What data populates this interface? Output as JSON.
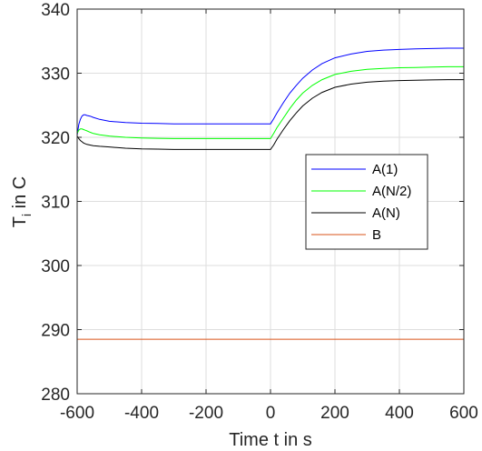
{
  "chart_data": {
    "type": "line",
    "title": "",
    "xlabel": "Time t in s",
    "ylabel": "T_i in  C",
    "ylabel_main": "T",
    "ylabel_sub": "i",
    "ylabel_rest": " in  C",
    "xlim": [
      -600,
      600
    ],
    "ylim": [
      280,
      340
    ],
    "xticks": [
      -600,
      -400,
      -200,
      0,
      200,
      400,
      600
    ],
    "yticks": [
      280,
      290,
      300,
      310,
      320,
      330,
      340
    ],
    "xtick_labels": [
      "-600",
      "-400",
      "-200",
      "0",
      "200",
      "400",
      "600"
    ],
    "ytick_labels": [
      "280",
      "290",
      "300",
      "310",
      "320",
      "330",
      "340"
    ],
    "grid": true,
    "legend_position": "right-center",
    "series": [
      {
        "name": "A(1)",
        "color": "#0000ff",
        "x": [
          -600,
          -595,
          -590,
          -585,
          -580,
          -575,
          -570,
          -560,
          -550,
          -530,
          -500,
          -450,
          -400,
          -350,
          -300,
          -250,
          -200,
          -150,
          -100,
          -50,
          -1,
          0,
          10,
          20,
          40,
          60,
          80,
          100,
          130,
          160,
          200,
          250,
          300,
          350,
          400,
          450,
          500,
          550,
          600
        ],
        "y": [
          320.3,
          322.0,
          322.8,
          323.3,
          323.5,
          323.5,
          323.4,
          323.3,
          323.1,
          322.8,
          322.5,
          322.3,
          322.2,
          322.15,
          322.1,
          322.1,
          322.1,
          322.1,
          322.1,
          322.1,
          322.1,
          322.1,
          322.9,
          323.8,
          325.4,
          326.9,
          328.1,
          329.2,
          330.5,
          331.5,
          332.4,
          333.0,
          333.4,
          333.6,
          333.7,
          333.8,
          333.85,
          333.9,
          333.9
        ]
      },
      {
        "name": "A(N/2)",
        "color": "#00ff00",
        "x": [
          -600,
          -595,
          -590,
          -585,
          -580,
          -575,
          -570,
          -560,
          -550,
          -530,
          -500,
          -450,
          -400,
          -350,
          -300,
          -250,
          -200,
          -150,
          -100,
          -50,
          -1,
          0,
          10,
          20,
          40,
          60,
          80,
          100,
          130,
          160,
          200,
          250,
          300,
          350,
          400,
          450,
          500,
          550,
          600
        ],
        "y": [
          320.6,
          321.1,
          321.3,
          321.3,
          321.2,
          321.1,
          321.0,
          320.8,
          320.6,
          320.4,
          320.2,
          320.0,
          319.9,
          319.85,
          319.8,
          319.8,
          319.8,
          319.8,
          319.8,
          319.8,
          319.8,
          319.8,
          320.6,
          321.5,
          323.0,
          324.5,
          325.8,
          326.9,
          328.1,
          329.0,
          329.8,
          330.3,
          330.6,
          330.75,
          330.85,
          330.9,
          330.95,
          331.0,
          331.0
        ]
      },
      {
        "name": "A(N)",
        "color": "#000000",
        "x": [
          -600,
          -595,
          -590,
          -585,
          -580,
          -575,
          -570,
          -560,
          -550,
          -530,
          -500,
          -450,
          -400,
          -350,
          -300,
          -250,
          -200,
          -150,
          -100,
          -50,
          -1,
          0,
          10,
          20,
          40,
          60,
          80,
          100,
          130,
          160,
          200,
          250,
          300,
          350,
          400,
          450,
          500,
          550,
          600
        ],
        "y": [
          320.2,
          319.8,
          319.5,
          319.3,
          319.1,
          319.0,
          318.9,
          318.8,
          318.7,
          318.6,
          318.5,
          318.3,
          318.2,
          318.15,
          318.1,
          318.1,
          318.1,
          318.1,
          318.1,
          318.1,
          318.1,
          318.1,
          318.8,
          319.7,
          321.2,
          322.6,
          323.8,
          324.9,
          326.1,
          327.0,
          327.8,
          328.3,
          328.6,
          328.75,
          328.85,
          328.9,
          328.95,
          329.0,
          329.0
        ]
      },
      {
        "name": "B",
        "color": "#d95319",
        "x": [
          -600,
          600
        ],
        "y": [
          288.5,
          288.5
        ]
      }
    ]
  }
}
